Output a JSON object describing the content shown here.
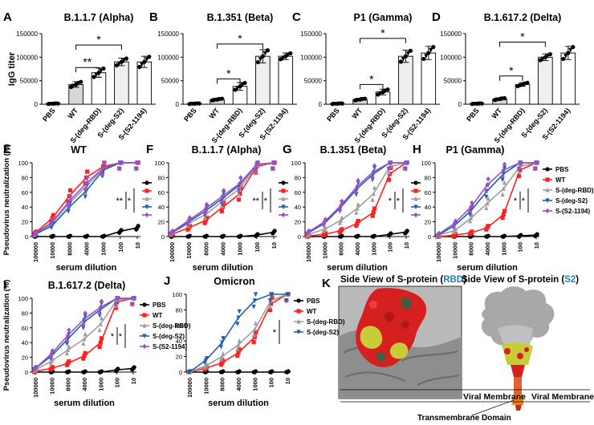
{
  "colors": {
    "PBS": "#000000",
    "WT": "#ff2020",
    "S-(deg-RBD)": "#9e9e9e",
    "S-(deg-S2)": "#1f5fb0",
    "S-(S2-1194)": "#9b4fc8",
    "bar_fill_wt": "#d8d8d8",
    "bar_fill_s2": "#efefef",
    "rbd_label": "#1f7fc0",
    "s2_label": "#1f7fc0"
  },
  "chart_data": [
    {
      "panel": "A",
      "type": "bar",
      "title": "B.1.1.7 (Alpha)",
      "ylabel": "IgG titer",
      "ylim": [
        0,
        150000
      ],
      "yticks": [
        "0",
        "50000",
        "100000",
        "150000"
      ],
      "categories": [
        "PBS",
        "WT",
        "S-(deg-RBD)",
        "S-(deg-S2)",
        "S-(S2-1194)"
      ],
      "values": [
        1000,
        42000,
        67000,
        90000,
        90000
      ],
      "errors": [
        500,
        6000,
        10000,
        8000,
        12000
      ],
      "brackets": [
        {
          "from": 1,
          "to": 2,
          "label": "**",
          "level": 78000
        },
        {
          "from": 1,
          "to": 3,
          "label": "*",
          "level": 126000
        }
      ]
    },
    {
      "panel": "B",
      "type": "bar",
      "title": "B.1.351 (Beta)",
      "ylabel": "",
      "ylim": [
        0,
        150000
      ],
      "yticks": [
        "0",
        "50000",
        "100000",
        "150000"
      ],
      "categories": [
        "PBS",
        "WT",
        "S-(deg-RBD)",
        "S-(deg-S2)",
        "S-(S2-1194)"
      ],
      "values": [
        1000,
        10000,
        38000,
        102000,
        102000
      ],
      "errors": [
        500,
        2000,
        8000,
        14000,
        7000
      ],
      "brackets": [
        {
          "from": 1,
          "to": 2,
          "label": "*",
          "level": 54000
        },
        {
          "from": 1,
          "to": 3,
          "label": "*",
          "level": 128000
        }
      ]
    },
    {
      "panel": "C",
      "type": "bar",
      "title": "P1 (Gamma)",
      "ylabel": "",
      "ylim": [
        0,
        150000
      ],
      "yticks": [
        "0",
        "50000",
        "100000",
        "150000"
      ],
      "categories": [
        "PBS",
        "WT",
        "S-(deg-RBD)",
        "S-(deg-S2)",
        "S-(S2-1194)"
      ],
      "values": [
        1000,
        10000,
        26000,
        102000,
        109000
      ],
      "errors": [
        500,
        2000,
        6000,
        13000,
        14000
      ],
      "brackets": [
        {
          "from": 1,
          "to": 2,
          "label": "*",
          "level": 42000
        },
        {
          "from": 1,
          "to": 3,
          "label": "*",
          "level": 140000
        }
      ]
    },
    {
      "panel": "D",
      "type": "bar",
      "title": "B.1.617.2 (Delta)",
      "ylabel": "",
      "ylim": [
        0,
        150000
      ],
      "yticks": [
        "0",
        "50000",
        "100000",
        "150000"
      ],
      "categories": [
        "PBS",
        "WT",
        "S-(deg-RBD)",
        "S-(deg-S2)",
        "S-(S2-1194)"
      ],
      "values": [
        1000,
        11000,
        42000,
        100000,
        109000
      ],
      "errors": [
        500,
        2000,
        4000,
        7000,
        14000
      ],
      "brackets": [
        {
          "from": 1,
          "to": 2,
          "label": "*",
          "level": 60000
        },
        {
          "from": 1,
          "to": 3,
          "label": "*",
          "level": 132000
        }
      ]
    },
    {
      "panel": "E",
      "type": "line",
      "title": "WT",
      "xlabel": "serum dilution",
      "ylabel": "Pseudovirus neutralization (%)",
      "ylim": [
        0,
        100
      ],
      "yticks": [
        "0",
        "20",
        "40",
        "60",
        "80",
        "100"
      ],
      "categories": [
        "100000",
        "10000",
        "8000",
        "4000",
        "1000",
        "100",
        "10"
      ],
      "legend": [],
      "legend_markers": true,
      "series": [
        {
          "name": "PBS",
          "values": [
            0,
            0,
            0,
            0,
            0,
            7,
            12
          ]
        },
        {
          "name": "WT",
          "values": [
            5,
            25,
            55,
            80,
            95,
            100,
            100
          ]
        },
        {
          "name": "S-(deg-RBD)",
          "values": [
            3,
            18,
            45,
            68,
            92,
            100,
            100
          ]
        },
        {
          "name": "S-(deg-S2)",
          "values": [
            3,
            15,
            40,
            62,
            90,
            100,
            100
          ]
        },
        {
          "name": "S-(S2-1194)",
          "values": [
            4,
            20,
            48,
            72,
            93,
            100,
            100
          ]
        }
      ],
      "significance": [
        "*",
        "**"
      ]
    },
    {
      "panel": "F",
      "type": "line",
      "title": "B.1.1.7 (Alpha)",
      "xlabel": "serum dilution",
      "ylabel": "",
      "ylim": [
        0,
        100
      ],
      "yticks": [
        "0",
        "20",
        "40",
        "60",
        "80",
        "100"
      ],
      "categories": [
        "100000",
        "10000",
        "8000",
        "4000",
        "1000",
        "100",
        "10"
      ],
      "legend": [],
      "legend_markers": true,
      "series": [
        {
          "name": "PBS",
          "values": [
            0,
            0,
            0,
            0,
            0,
            2,
            6
          ]
        },
        {
          "name": "WT",
          "values": [
            3,
            12,
            22,
            40,
            58,
            95,
            100
          ]
        },
        {
          "name": "S-(deg-RBD)",
          "values": [
            5,
            18,
            30,
            48,
            65,
            97,
            100
          ]
        },
        {
          "name": "S-(deg-S2)",
          "values": [
            5,
            20,
            35,
            52,
            70,
            98,
            100
          ]
        },
        {
          "name": "S-(S2-1194)",
          "values": [
            6,
            22,
            38,
            55,
            72,
            98,
            100
          ]
        }
      ],
      "significance": [
        "*",
        "**"
      ]
    },
    {
      "panel": "G",
      "type": "line",
      "title": "B.1.351 (Beta)",
      "xlabel": "serum dilution",
      "ylabel": "",
      "ylim": [
        0,
        100
      ],
      "yticks": [
        "0",
        "20",
        "40",
        "60",
        "80",
        "100"
      ],
      "categories": [
        "100000",
        "10000",
        "8000",
        "4000",
        "1000",
        "100",
        "10"
      ],
      "legend": [],
      "legend_markers": true,
      "series": [
        {
          "name": "PBS",
          "values": [
            0,
            0,
            0,
            0,
            0,
            3,
            6
          ]
        },
        {
          "name": "WT",
          "values": [
            1,
            3,
            8,
            18,
            33,
            85,
            100
          ]
        },
        {
          "name": "S-(deg-RBD)",
          "values": [
            3,
            10,
            22,
            38,
            58,
            95,
            100
          ]
        },
        {
          "name": "S-(deg-S2)",
          "values": [
            5,
            18,
            40,
            65,
            85,
            100,
            100
          ]
        },
        {
          "name": "S-(S2-1194)",
          "values": [
            6,
            20,
            42,
            68,
            88,
            100,
            100
          ]
        }
      ],
      "significance": [
        "*",
        "*"
      ]
    },
    {
      "panel": "H",
      "type": "line",
      "title": "P1  (Gamma)",
      "xlabel": "serum dilution",
      "ylabel": "",
      "ylim": [
        0,
        100
      ],
      "yticks": [
        "0",
        "20",
        "40",
        "60",
        "80",
        "100"
      ],
      "categories": [
        "100000",
        "10000",
        "8000",
        "4000",
        "1000",
        "100",
        "10"
      ],
      "legend": [
        "PBS",
        "WT",
        "S-(deg-RBD)",
        "S-(deg-S2)",
        "S-(S2-1194)"
      ],
      "legend_markers": false,
      "series": [
        {
          "name": "PBS",
          "values": [
            0,
            0,
            0,
            0,
            0,
            1,
            2
          ]
        },
        {
          "name": "WT",
          "values": [
            0,
            2,
            5,
            12,
            30,
            90,
            100
          ]
        },
        {
          "name": "S-(deg-RBD)",
          "values": [
            2,
            8,
            25,
            45,
            65,
            95,
            100
          ]
        },
        {
          "name": "S-(deg-S2)",
          "values": [
            2,
            15,
            35,
            62,
            85,
            100,
            100
          ]
        },
        {
          "name": "S-(S2-1194)",
          "values": [
            3,
            18,
            40,
            70,
            90,
            100,
            100
          ]
        }
      ],
      "significance": [
        "*",
        "*"
      ]
    },
    {
      "panel": "I",
      "type": "line",
      "title": "B.1.617.2 (Delta)",
      "xlabel": "serum dilution",
      "ylabel": "Pseudovirus neutralization (%)",
      "ylim": [
        0,
        100
      ],
      "yticks": [
        "0",
        "20",
        "40",
        "60",
        "80",
        "100"
      ],
      "categories": [
        "100000",
        "10000",
        "8000",
        "4000",
        "1000",
        "100",
        "10"
      ],
      "legend": [
        "PBS",
        "WT",
        "S-(deg-RBD)",
        "S-(deg-S2)",
        "S-(S2-1194)"
      ],
      "legend_markers": false,
      "series": [
        {
          "name": "PBS",
          "values": [
            0,
            0,
            0,
            0,
            0,
            3,
            5
          ]
        },
        {
          "name": "WT",
          "values": [
            1,
            5,
            12,
            22,
            40,
            95,
            100
          ]
        },
        {
          "name": "S-(deg-RBD)",
          "values": [
            3,
            15,
            30,
            45,
            65,
            98,
            100
          ]
        },
        {
          "name": "S-(deg-S2)",
          "values": [
            5,
            22,
            45,
            68,
            85,
            100,
            100
          ]
        },
        {
          "name": "S-(S2-1194)",
          "values": [
            5,
            25,
            50,
            72,
            88,
            100,
            100
          ]
        }
      ],
      "significance": [
        "*",
        "*"
      ]
    },
    {
      "panel": "J",
      "type": "line",
      "title": "Omicron",
      "xlabel": "serum dilution",
      "ylabel": "",
      "ylim": [
        0,
        100
      ],
      "yticks": [
        "0",
        "20",
        "40",
        "60",
        "80",
        "100"
      ],
      "categories": [
        "100000",
        "10000",
        "8000",
        "4000",
        "1000",
        "100",
        "10"
      ],
      "legend": [
        "PBS",
        "WT",
        "S-(deg-RBD)",
        "S-(deg-S2)"
      ],
      "legend_markers": false,
      "series": [
        {
          "name": "PBS",
          "values": [
            0,
            0,
            0,
            0,
            0,
            0,
            0
          ]
        },
        {
          "name": "WT",
          "values": [
            0,
            5,
            12,
            25,
            45,
            88,
            100
          ]
        },
        {
          "name": "S-(deg-RBD)",
          "values": [
            0,
            8,
            20,
            35,
            55,
            92,
            100
          ]
        },
        {
          "name": "S-(deg-S2)",
          "values": [
            0,
            15,
            38,
            70,
            92,
            100,
            100
          ]
        }
      ],
      "significance": [
        "*"
      ]
    }
  ],
  "panel_k": {
    "letter": "K",
    "left_title_prefix": "Side View of S-protein (",
    "left_title_key": "RBD",
    "left_title_suffix": ")",
    "right_title_prefix": "Side View of S-protein (",
    "right_title_key": "S2",
    "right_title_suffix": ")",
    "viral_membrane_left": "Viral Membrane",
    "viral_membrane_right": "Viral Membrane",
    "transmembrane_label": "Transmembrane Domain"
  }
}
